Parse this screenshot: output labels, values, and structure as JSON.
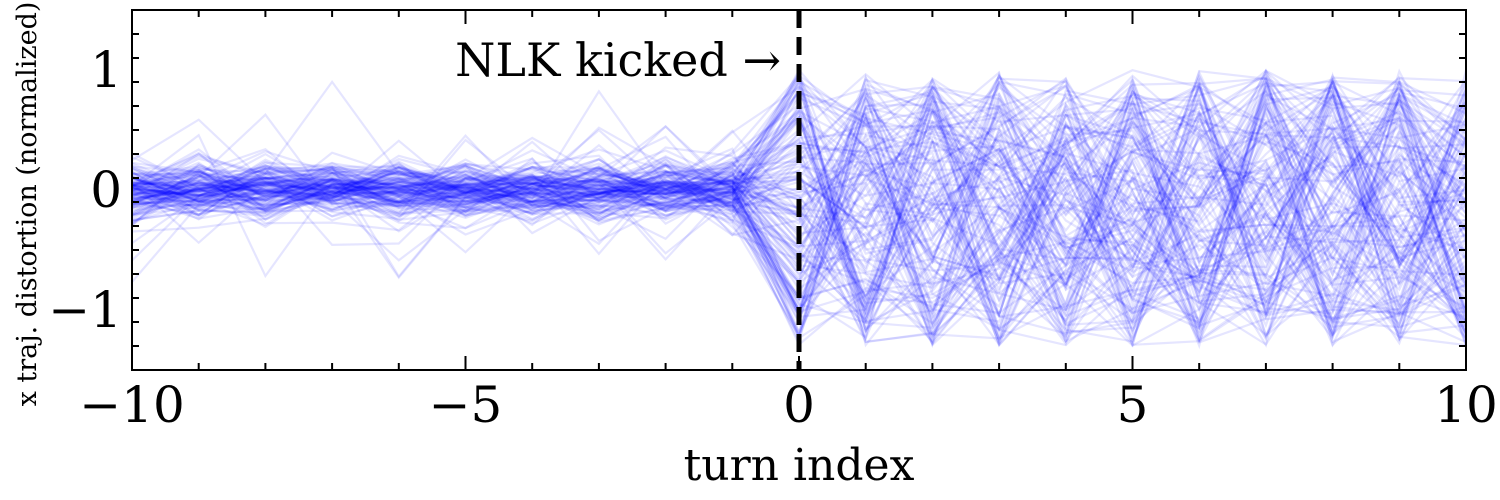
{
  "chart_data": {
    "type": "line",
    "xlabel": "turn index",
    "ylabel": "x traj. distortion (normalized)",
    "xlim": [
      -10,
      10
    ],
    "ylim": [
      -1.5,
      1.5
    ],
    "x_ticks": [
      -10,
      -5,
      0,
      5,
      10
    ],
    "x_tick_labels": [
      "−10",
      "−5",
      "0",
      "5",
      "10"
    ],
    "y_ticks": [
      -1,
      0,
      1
    ],
    "y_tick_labels": [
      "−1",
      "0",
      "1"
    ],
    "grid": false,
    "line_color": "#0000ff",
    "line_opacity": 0.1,
    "kick_turn": 0,
    "annotation": "NLK kicked →",
    "ensemble": {
      "count": 150,
      "x": [
        -10,
        -9,
        -8,
        -7,
        -6,
        -5,
        -4,
        -3,
        -2,
        -1,
        0,
        1,
        2,
        3,
        4,
        5,
        6,
        7,
        8,
        9,
        10
      ],
      "pre_kick_spread": 0.12,
      "post_kick_range": [
        -1.3,
        1.0
      ]
    },
    "series": [
      {
        "x": [
          -10,
          -9,
          -8,
          -7,
          -6,
          -5,
          -4,
          -3,
          -2,
          -1,
          0,
          1,
          2,
          3,
          4,
          5,
          6,
          7,
          8,
          9,
          10
        ],
        "values": [
          0.02,
          -0.05,
          0.1,
          0.03,
          -0.08,
          0.05,
          0.12,
          -0.02,
          0.04,
          -0.03,
          1.0,
          0.35,
          -0.6,
          0.8,
          -0.2,
          0.55,
          -0.85,
          0.1,
          0.9,
          -0.4,
          0.6
        ]
      },
      {
        "x": [
          -10,
          -9,
          -8,
          -7,
          -6,
          -5,
          -4,
          -3,
          -2,
          -1,
          0,
          1,
          2,
          3,
          4,
          5,
          6,
          7,
          8,
          9,
          10
        ],
        "values": [
          -0.1,
          0.06,
          -0.02,
          0.09,
          0.0,
          -0.12,
          0.05,
          0.08,
          -0.06,
          0.02,
          -1.0,
          -0.3,
          0.7,
          -0.75,
          0.25,
          -0.5,
          0.95,
          -0.1,
          -0.8,
          0.45,
          -0.9
        ]
      },
      {
        "x": [
          -10,
          -9,
          -8,
          -7,
          -6,
          -5,
          -4,
          -3,
          -2,
          -1,
          0,
          1,
          2,
          3,
          4,
          5,
          6,
          7,
          8,
          9,
          10
        ],
        "values": [
          0.05,
          0.15,
          0.0,
          -0.1,
          0.07,
          0.02,
          -0.09,
          0.11,
          0.0,
          0.05,
          0.5,
          -0.9,
          0.4,
          0.2,
          -0.95,
          0.7,
          0.1,
          -0.6,
          0.3,
          0.85,
          -0.2
        ]
      }
    ]
  }
}
